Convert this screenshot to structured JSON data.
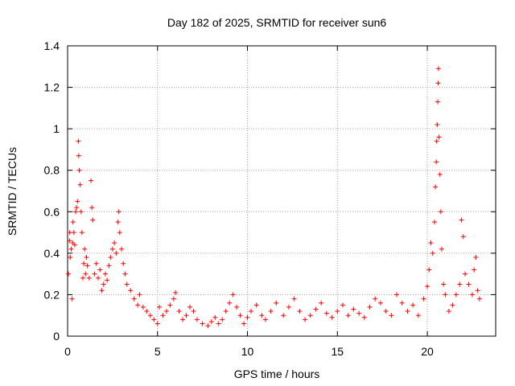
{
  "chart_data": {
    "type": "scatter",
    "title": "Day 182 of 2025, SRMTID for receiver sun6",
    "xlabel": "GPS time / hours",
    "ylabel": "SRMTID / TECUs",
    "xlim": [
      0,
      23.8
    ],
    "ylim": [
      0,
      1.4
    ],
    "x_ticks": [
      0,
      5,
      10,
      15,
      20
    ],
    "x_tick_labels": [
      "0",
      "5",
      "10",
      "15",
      "20"
    ],
    "y_ticks": [
      0,
      0.2,
      0.4,
      0.6,
      0.8,
      1.0,
      1.2,
      1.4
    ],
    "y_tick_labels": [
      "0",
      "0.2",
      "0.4",
      "0.6",
      "0.8",
      "1",
      "1.2",
      "1.4"
    ],
    "grid": true,
    "marker": "+",
    "color": "#ff0000",
    "series": [
      {
        "name": "sun6",
        "points": [
          [
            0.05,
            0.3
          ],
          [
            0.1,
            0.46
          ],
          [
            0.12,
            0.5
          ],
          [
            0.15,
            0.38
          ],
          [
            0.2,
            0.42
          ],
          [
            0.25,
            0.18
          ],
          [
            0.28,
            0.45
          ],
          [
            0.3,
            0.55
          ],
          [
            0.35,
            0.5
          ],
          [
            0.4,
            0.44
          ],
          [
            0.45,
            0.6
          ],
          [
            0.5,
            0.62
          ],
          [
            0.55,
            0.65
          ],
          [
            0.6,
            0.94
          ],
          [
            0.62,
            0.87
          ],
          [
            0.65,
            0.8
          ],
          [
            0.7,
            0.73
          ],
          [
            0.75,
            0.6
          ],
          [
            0.8,
            0.5
          ],
          [
            0.85,
            0.28
          ],
          [
            0.9,
            0.35
          ],
          [
            0.95,
            0.42
          ],
          [
            1.0,
            0.3
          ],
          [
            1.05,
            0.38
          ],
          [
            1.1,
            0.34
          ],
          [
            1.2,
            0.28
          ],
          [
            1.3,
            0.75
          ],
          [
            1.35,
            0.62
          ],
          [
            1.4,
            0.56
          ],
          [
            1.5,
            0.3
          ],
          [
            1.6,
            0.35
          ],
          [
            1.7,
            0.28
          ],
          [
            1.8,
            0.32
          ],
          [
            1.9,
            0.22
          ],
          [
            2.0,
            0.25
          ],
          [
            2.1,
            0.3
          ],
          [
            2.2,
            0.27
          ],
          [
            2.3,
            0.34
          ],
          [
            2.4,
            0.38
          ],
          [
            2.5,
            0.42
          ],
          [
            2.6,
            0.45
          ],
          [
            2.7,
            0.4
          ],
          [
            2.8,
            0.55
          ],
          [
            2.85,
            0.6
          ],
          [
            2.9,
            0.5
          ],
          [
            3.0,
            0.42
          ],
          [
            3.1,
            0.35
          ],
          [
            3.2,
            0.3
          ],
          [
            3.3,
            0.25
          ],
          [
            3.5,
            0.22
          ],
          [
            3.7,
            0.18
          ],
          [
            3.9,
            0.15
          ],
          [
            4.0,
            0.2
          ],
          [
            4.2,
            0.14
          ],
          [
            4.4,
            0.12
          ],
          [
            4.6,
            0.1
          ],
          [
            4.8,
            0.08
          ],
          [
            5.0,
            0.06
          ],
          [
            5.1,
            0.14
          ],
          [
            5.3,
            0.1
          ],
          [
            5.5,
            0.12
          ],
          [
            5.7,
            0.15
          ],
          [
            5.9,
            0.18
          ],
          [
            6.0,
            0.21
          ],
          [
            6.2,
            0.12
          ],
          [
            6.4,
            0.08
          ],
          [
            6.6,
            0.1
          ],
          [
            6.8,
            0.14
          ],
          [
            7.0,
            0.12
          ],
          [
            7.2,
            0.08
          ],
          [
            7.5,
            0.06
          ],
          [
            7.8,
            0.05
          ],
          [
            8.0,
            0.07
          ],
          [
            8.2,
            0.09
          ],
          [
            8.4,
            0.06
          ],
          [
            8.6,
            0.08
          ],
          [
            8.8,
            0.12
          ],
          [
            9.0,
            0.16
          ],
          [
            9.2,
            0.2
          ],
          [
            9.4,
            0.14
          ],
          [
            9.6,
            0.1
          ],
          [
            9.8,
            0.06
          ],
          [
            10.0,
            0.09
          ],
          [
            10.2,
            0.12
          ],
          [
            10.5,
            0.15
          ],
          [
            10.8,
            0.1
          ],
          [
            11.0,
            0.08
          ],
          [
            11.3,
            0.12
          ],
          [
            11.6,
            0.16
          ],
          [
            12.0,
            0.1
          ],
          [
            12.3,
            0.14
          ],
          [
            12.6,
            0.18
          ],
          [
            12.9,
            0.12
          ],
          [
            13.2,
            0.08
          ],
          [
            13.5,
            0.1
          ],
          [
            13.8,
            0.13
          ],
          [
            14.1,
            0.16
          ],
          [
            14.4,
            0.11
          ],
          [
            14.7,
            0.09
          ],
          [
            15.0,
            0.12
          ],
          [
            15.3,
            0.15
          ],
          [
            15.6,
            0.1
          ],
          [
            15.9,
            0.13
          ],
          [
            16.2,
            0.11
          ],
          [
            16.5,
            0.09
          ],
          [
            16.8,
            0.14
          ],
          [
            17.1,
            0.18
          ],
          [
            17.4,
            0.16
          ],
          [
            17.7,
            0.12
          ],
          [
            18.0,
            0.1
          ],
          [
            18.3,
            0.2
          ],
          [
            18.6,
            0.16
          ],
          [
            18.9,
            0.12
          ],
          [
            19.2,
            0.15
          ],
          [
            19.5,
            0.1
          ],
          [
            19.8,
            0.18
          ],
          [
            20.0,
            0.24
          ],
          [
            20.1,
            0.32
          ],
          [
            20.2,
            0.45
          ],
          [
            20.3,
            0.4
          ],
          [
            20.4,
            0.55
          ],
          [
            20.45,
            0.72
          ],
          [
            20.5,
            0.84
          ],
          [
            20.52,
            0.94
          ],
          [
            20.55,
            1.02
          ],
          [
            20.58,
            1.13
          ],
          [
            20.6,
            1.22
          ],
          [
            20.62,
            1.29
          ],
          [
            20.65,
            0.96
          ],
          [
            20.7,
            0.78
          ],
          [
            20.75,
            0.6
          ],
          [
            20.8,
            0.42
          ],
          [
            20.9,
            0.25
          ],
          [
            21.0,
            0.2
          ],
          [
            21.2,
            0.12
          ],
          [
            21.4,
            0.15
          ],
          [
            21.6,
            0.2
          ],
          [
            21.8,
            0.25
          ],
          [
            21.9,
            0.56
          ],
          [
            22.0,
            0.48
          ],
          [
            22.1,
            0.3
          ],
          [
            22.3,
            0.25
          ],
          [
            22.5,
            0.2
          ],
          [
            22.6,
            0.32
          ],
          [
            22.7,
            0.38
          ],
          [
            22.8,
            0.22
          ],
          [
            22.9,
            0.18
          ]
        ]
      }
    ]
  }
}
